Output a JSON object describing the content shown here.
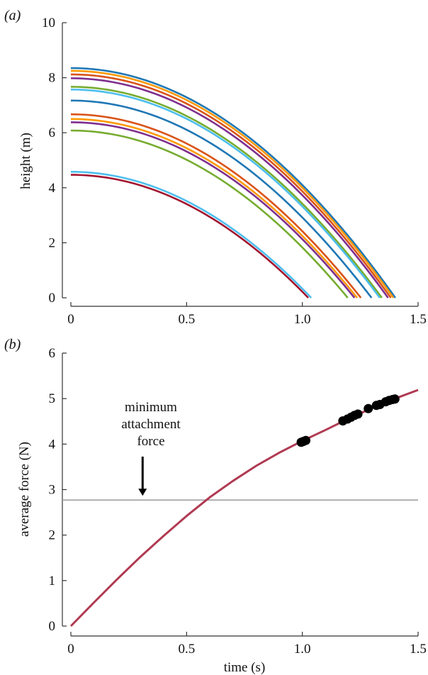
{
  "chart_data": [
    {
      "type": "line",
      "panel": "(a)",
      "title": "",
      "xlabel": "",
      "ylabel": "height (m)",
      "xlim": [
        0,
        1.5
      ],
      "ylim": [
        0,
        10
      ],
      "xticks": [
        "0",
        "0.5",
        "1.0",
        "1.5"
      ],
      "yticks": [
        "0",
        "2",
        "4",
        "6",
        "8",
        "10"
      ],
      "series_model": "height = h0 - 4.25*t^2 (falling curves)",
      "series": [
        {
          "h0": 8.35,
          "color": "#1f77b4"
        },
        {
          "h0": 8.25,
          "color": "#ff9900"
        },
        {
          "h0": 8.12,
          "color": "#d95319"
        },
        {
          "h0": 7.98,
          "color": "#7e2f8e"
        },
        {
          "h0": 7.67,
          "color": "#77ac30"
        },
        {
          "h0": 7.57,
          "color": "#4dbeee"
        },
        {
          "h0": 7.17,
          "color": "#1f77b4"
        },
        {
          "h0": 6.67,
          "color": "#d95319"
        },
        {
          "h0": 6.5,
          "color": "#ff9900"
        },
        {
          "h0": 6.38,
          "color": "#7e2f8e"
        },
        {
          "h0": 6.08,
          "color": "#77ac30"
        },
        {
          "h0": 4.58,
          "color": "#4dbeee"
        },
        {
          "h0": 4.47,
          "color": "#a2142f"
        }
      ],
      "grid": false
    },
    {
      "type": "line",
      "panel": "(b)",
      "title": "",
      "xlabel": "time (s)",
      "ylabel": "average force (N)",
      "xlim": [
        0,
        1.5
      ],
      "ylim": [
        0,
        6
      ],
      "xticks": [
        "0",
        "0.5",
        "1.0",
        "1.5"
      ],
      "yticks": [
        "0",
        "1",
        "2",
        "3",
        "4",
        "5",
        "6"
      ],
      "curve_color": "#b03a52",
      "curve": {
        "x": [
          0,
          0.1,
          0.2,
          0.3,
          0.4,
          0.5,
          0.6,
          0.7,
          0.8,
          0.9,
          1.0,
          1.1,
          1.2,
          1.3,
          1.4,
          1.5
        ],
        "y": [
          0,
          0.52,
          1.03,
          1.52,
          1.98,
          2.42,
          2.83,
          3.19,
          3.52,
          3.81,
          4.07,
          4.31,
          4.56,
          4.79,
          5.0,
          5.19
        ]
      },
      "points": {
        "x": [
          0.995,
          1.005,
          1.015,
          1.175,
          1.195,
          1.21,
          1.225,
          1.24,
          1.285,
          1.32,
          1.335,
          1.36,
          1.375,
          1.39,
          1.4
        ],
        "y": [
          4.04,
          4.06,
          4.08,
          4.51,
          4.55,
          4.59,
          4.63,
          4.66,
          4.78,
          4.85,
          4.87,
          4.93,
          4.96,
          4.98,
          4.99
        ]
      },
      "reference_line": {
        "y": 2.77,
        "color": "#999999"
      },
      "annotation": {
        "lines": [
          "minimum",
          "attachment",
          "force"
        ],
        "arrow_x": 0.31
      },
      "grid": false
    }
  ]
}
